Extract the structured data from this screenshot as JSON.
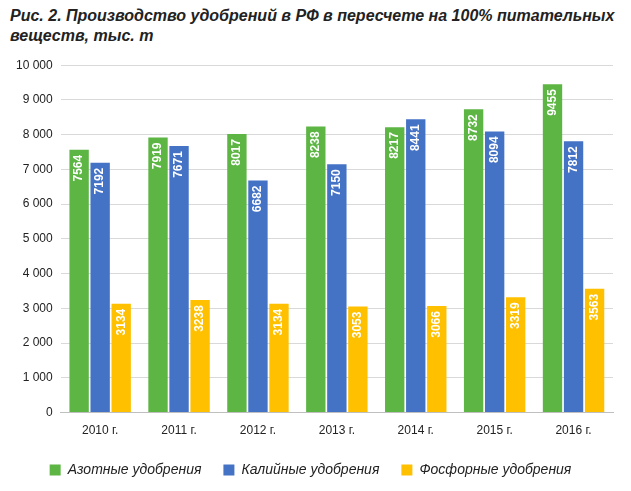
{
  "chart_data": {
    "type": "bar",
    "title": "Рис. 2. Производство удобрений в РФ в пересчете на 100% питательных веществ, тыс. т",
    "categories": [
      "2010 г.",
      "2011 г.",
      "2012 г.",
      "2013 г.",
      "2014 г.",
      "2015 г.",
      "2016 г."
    ],
    "series": [
      {
        "name": "Азотные удобрения",
        "color": "#5db544",
        "values": [
          7564,
          7919,
          8017,
          8238,
          8217,
          8732,
          9455
        ]
      },
      {
        "name": "Калийные удобрения",
        "color": "#4472c4",
        "values": [
          7192,
          7671,
          6682,
          7150,
          8441,
          8094,
          7812
        ]
      },
      {
        "name": "Фосфорные удобрения",
        "color": "#ffc000",
        "values": [
          3134,
          3238,
          3134,
          3053,
          3066,
          3319,
          3563
        ]
      }
    ],
    "ylim": [
      0,
      10000
    ],
    "yticks": [
      0,
      {
        "value": 1000,
        "label": "1 000"
      },
      {
        "value": 2000,
        "label": "2 000"
      },
      {
        "value": 3000,
        "label": "3 000"
      },
      {
        "value": 4000,
        "label": "4 000"
      },
      {
        "value": 5000,
        "label": "5 000"
      },
      {
        "value": 6000,
        "label": "6 000"
      },
      {
        "value": 7000,
        "label": "7 000"
      },
      {
        "value": 8000,
        "label": "8 000"
      },
      {
        "value": 9000,
        "label": "9 000"
      },
      {
        "value": 10000,
        "label": "10 000"
      }
    ],
    "grid": true,
    "legend": "bottom",
    "data_labels": true
  }
}
